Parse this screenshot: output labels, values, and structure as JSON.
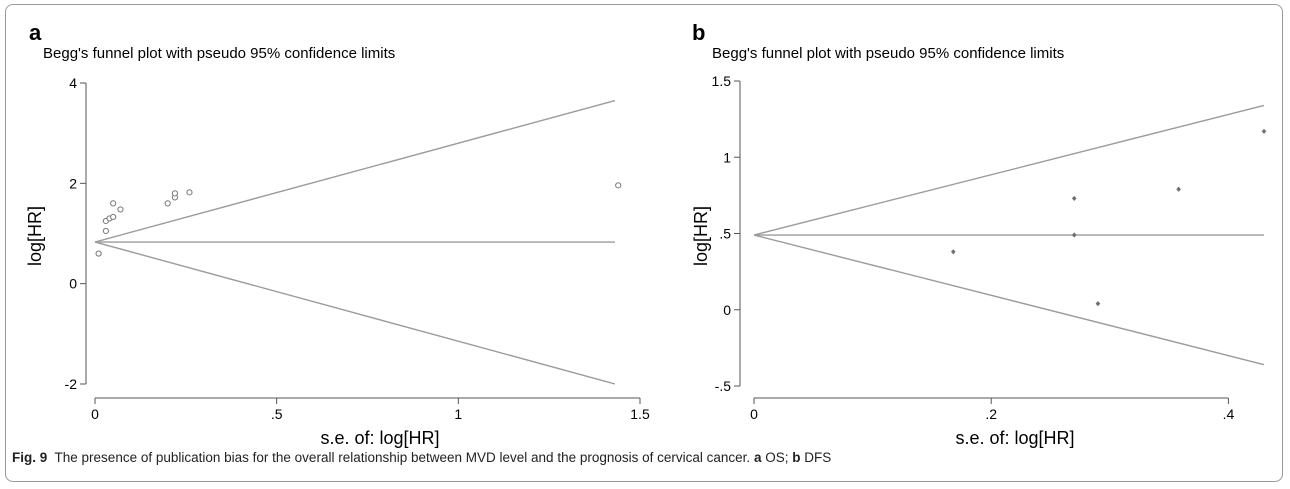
{
  "chart_data": [
    {
      "panel": "a",
      "type": "scatter",
      "title": "Begg's funnel plot with pseudo 95% confidence limits",
      "xlabel": "s.e. of: log[HR]",
      "ylabel": "log[HR]",
      "xlim": [
        0,
        1.5
      ],
      "ylim": [
        -2,
        4
      ],
      "xticks": [
        0,
        0.5,
        1,
        1.5
      ],
      "xtick_labels": [
        "0",
        ".5",
        "1",
        "1.5"
      ],
      "yticks": [
        -2,
        0,
        2,
        4
      ],
      "ytick_labels": [
        "-2",
        "0",
        "2",
        "4"
      ],
      "grid": false,
      "marker": "hollow-circle",
      "pooled_estimate": 0.83,
      "confidence_limits": {
        "upper": [
          [
            0,
            0.83
          ],
          [
            1.44,
            3.65
          ]
        ],
        "lower": [
          [
            0,
            0.83
          ],
          [
            1.44,
            -2.0
          ]
        ]
      },
      "points": [
        {
          "x": 0.01,
          "y": 0.6
        },
        {
          "x": 0.03,
          "y": 1.05
        },
        {
          "x": 0.03,
          "y": 1.25
        },
        {
          "x": 0.04,
          "y": 1.3
        },
        {
          "x": 0.05,
          "y": 1.33
        },
        {
          "x": 0.05,
          "y": 1.6
        },
        {
          "x": 0.07,
          "y": 1.48
        },
        {
          "x": 0.2,
          "y": 1.6
        },
        {
          "x": 0.22,
          "y": 1.72
        },
        {
          "x": 0.22,
          "y": 1.8
        },
        {
          "x": 0.26,
          "y": 1.82
        },
        {
          "x": 1.44,
          "y": 1.96
        }
      ]
    },
    {
      "panel": "b",
      "type": "scatter",
      "title": "Begg's funnel plot with pseudo 95% confidence limits",
      "xlabel": "s.e. of: log[HR]",
      "ylabel": "log[HR]",
      "xlim": [
        0,
        0.43
      ],
      "ylim": [
        -0.5,
        1.5
      ],
      "xticks": [
        0,
        0.2,
        0.4
      ],
      "xtick_labels": [
        "0",
        ".2",
        ".4"
      ],
      "yticks": [
        -0.5,
        0,
        0.5,
        1,
        1.5
      ],
      "ytick_labels": [
        "-.5",
        "0",
        ".5",
        "1",
        "1.5"
      ],
      "grid": false,
      "marker": "filled-diamond",
      "pooled_estimate": 0.49,
      "confidence_limits": {
        "upper": [
          [
            0,
            0.49
          ],
          [
            0.43,
            1.34
          ]
        ],
        "lower": [
          [
            0,
            0.49
          ],
          [
            0.43,
            -0.36
          ]
        ]
      },
      "points": [
        {
          "x": 0.168,
          "y": 0.38
        },
        {
          "x": 0.27,
          "y": 0.73
        },
        {
          "x": 0.27,
          "y": 0.49
        },
        {
          "x": 0.29,
          "y": 0.04
        },
        {
          "x": 0.358,
          "y": 0.79
        },
        {
          "x": 0.43,
          "y": 1.17
        }
      ]
    }
  ],
  "caption": {
    "fig_label": "Fig. 9",
    "text": "The presence of publication bias for the overall relationship between MVD level and the prognosis of cervical cancer.",
    "part_a_label": "a",
    "part_a_text": "OS;",
    "part_b_label": "b",
    "part_b_text": "DFS"
  },
  "colors": {
    "line": "#9b9b9b",
    "axis": "#555555",
    "marker_a": "#777777",
    "marker_b": "#6e6e6e"
  }
}
